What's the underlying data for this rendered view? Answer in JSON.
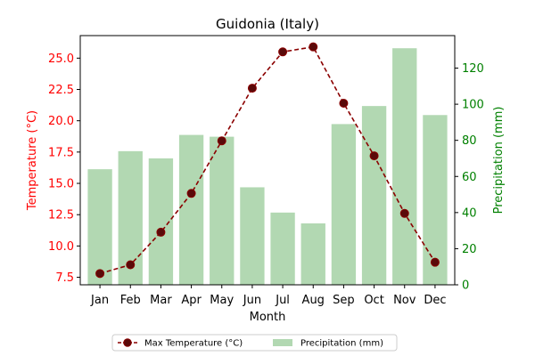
{
  "chart_data": {
    "type": "bar+line",
    "title": "Guidonia (Italy)",
    "xlabel": "Month",
    "categories": [
      "Jan",
      "Feb",
      "Mar",
      "Apr",
      "May",
      "Jun",
      "Jul",
      "Aug",
      "Sep",
      "Oct",
      "Nov",
      "Dec"
    ],
    "series": [
      {
        "name": "Max Temperature (°C)",
        "type": "line",
        "axis": "left",
        "color": "#8b0000",
        "values": [
          7.8,
          8.5,
          11.1,
          14.2,
          18.4,
          22.6,
          25.5,
          25.9,
          21.4,
          17.2,
          12.6,
          8.7
        ]
      },
      {
        "name": "Precipitation (mm)",
        "type": "bar",
        "axis": "right",
        "color": "#b2d8b2",
        "values": [
          64,
          74,
          70,
          83,
          82,
          54,
          40,
          34,
          89,
          99,
          131,
          94
        ]
      }
    ],
    "y_left": {
      "label": "Temperature (°C)",
      "color": "#ff0000",
      "ylim": [
        6.9,
        26.8
      ],
      "ticks": [
        "7.5",
        "10.0",
        "12.5",
        "15.0",
        "17.5",
        "20.0",
        "22.5",
        "25.0"
      ]
    },
    "y_right": {
      "label": "Precipitation (mm)",
      "color": "#008000",
      "ylim": [
        0,
        138
      ],
      "ticks": [
        "0",
        "20",
        "40",
        "60",
        "80",
        "100",
        "120"
      ]
    },
    "grid": false,
    "legend_position": "bottom-center"
  }
}
